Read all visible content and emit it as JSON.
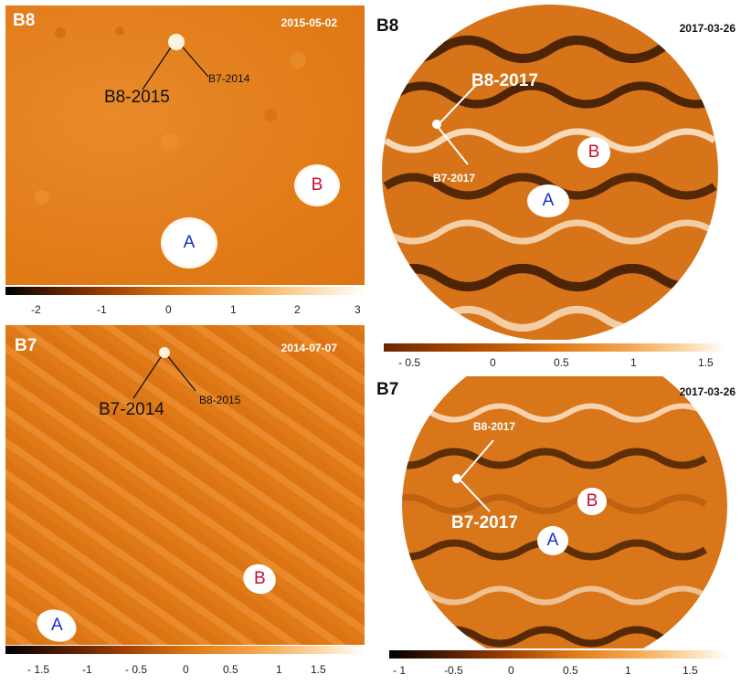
{
  "colors": {
    "blueLabel": "#1a2fc6",
    "redLabel": "#c8102e",
    "map": "#e9821f"
  },
  "panels": [
    {
      "id": "p1",
      "band": "B8",
      "date": "2015-05-02",
      "sourceA": "A",
      "sourceB": "B",
      "label_big": "B8-2015",
      "label_small": "B7-2014"
    },
    {
      "id": "p2",
      "band": "B8",
      "date": "2017-03-26",
      "sourceA": "A",
      "sourceB": "B",
      "label_big": "B8-2017",
      "label_small": "B7-2017"
    },
    {
      "id": "p3",
      "band": "B7",
      "date": "2014-07-07",
      "sourceA": "A",
      "sourceB": "B",
      "label_big": "B7-2014",
      "label_small": "B8-2015"
    },
    {
      "id": "p4",
      "band": "B7",
      "date": "2017-03-26",
      "sourceA": "A",
      "sourceB": "B",
      "label_big": "B7-2017",
      "label_small": "B8-2017"
    }
  ],
  "colorbars": [
    {
      "id": "cb1",
      "ticks": [
        "-2",
        "-1",
        "0",
        "1",
        "2",
        "3"
      ]
    },
    {
      "id": "cb2",
      "ticks": [
        "- 0.5",
        "0",
        "0.5",
        "1",
        "1.5"
      ]
    },
    {
      "id": "cb3",
      "ticks": [
        "- 1.5",
        "-1",
        "- 0.5",
        "0",
        "0.5",
        "1",
        "1.5"
      ]
    },
    {
      "id": "cb4",
      "ticks": [
        "- 1",
        "-0.5",
        "0",
        "0.5",
        "1",
        "1.5"
      ]
    }
  ]
}
